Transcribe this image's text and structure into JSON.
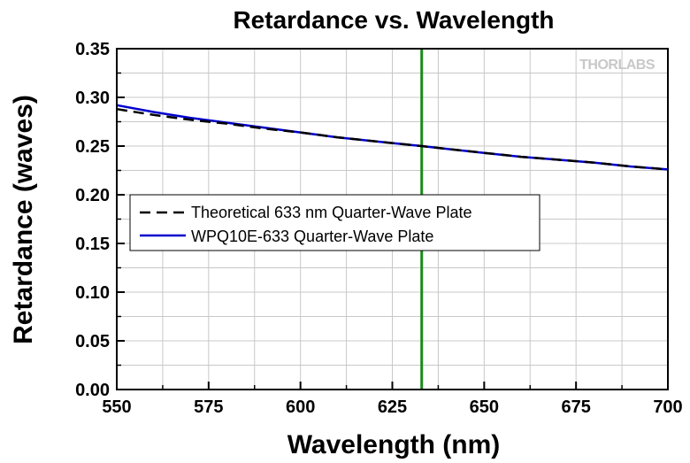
{
  "brand": {
    "text": "THORLABS",
    "color": "#c0c0c0"
  },
  "chart_data": {
    "type": "line",
    "title": "Retardance vs. Wavelength",
    "xlabel": "Wavelength (nm)",
    "ylabel": "Retardance (waves)",
    "xlim": [
      550,
      700
    ],
    "ylim": [
      0,
      0.35
    ],
    "xticks": [
      550,
      575,
      600,
      625,
      650,
      675,
      700
    ],
    "xtick_labels": [
      "550",
      "575",
      "600",
      "625",
      "650",
      "675",
      "700"
    ],
    "yticks": [
      0,
      0.05,
      0.1,
      0.15,
      0.2,
      0.25,
      0.3,
      0.35
    ],
    "ytick_labels": [
      "0.00",
      "0.05",
      "0.10",
      "0.15",
      "0.20",
      "0.25",
      "0.30",
      "0.35"
    ],
    "grid": true,
    "legend_position": "center-left",
    "reference_line": {
      "x": 633,
      "color": "#1a8a1a"
    },
    "series": [
      {
        "name": "Theoretical 633 nm Quarter-Wave Plate",
        "style": "dashed",
        "color": "#000000",
        "x": [
          550,
          560,
          570,
          580,
          590,
          600,
          610,
          620,
          633,
          640,
          650,
          660,
          670,
          680,
          690,
          700
        ],
        "y": [
          0.288,
          0.282,
          0.277,
          0.273,
          0.268,
          0.264,
          0.259,
          0.255,
          0.25,
          0.247,
          0.243,
          0.239,
          0.236,
          0.233,
          0.229,
          0.226
        ]
      },
      {
        "name": "WPQ10E-633 Quarter-Wave Plate",
        "style": "solid",
        "color": "#0000cc",
        "x": [
          550,
          560,
          570,
          580,
          590,
          600,
          610,
          620,
          633,
          640,
          650,
          660,
          670,
          680,
          690,
          700
        ],
        "y": [
          0.292,
          0.285,
          0.279,
          0.274,
          0.269,
          0.264,
          0.259,
          0.255,
          0.25,
          0.247,
          0.243,
          0.239,
          0.236,
          0.233,
          0.229,
          0.226
        ]
      }
    ]
  }
}
